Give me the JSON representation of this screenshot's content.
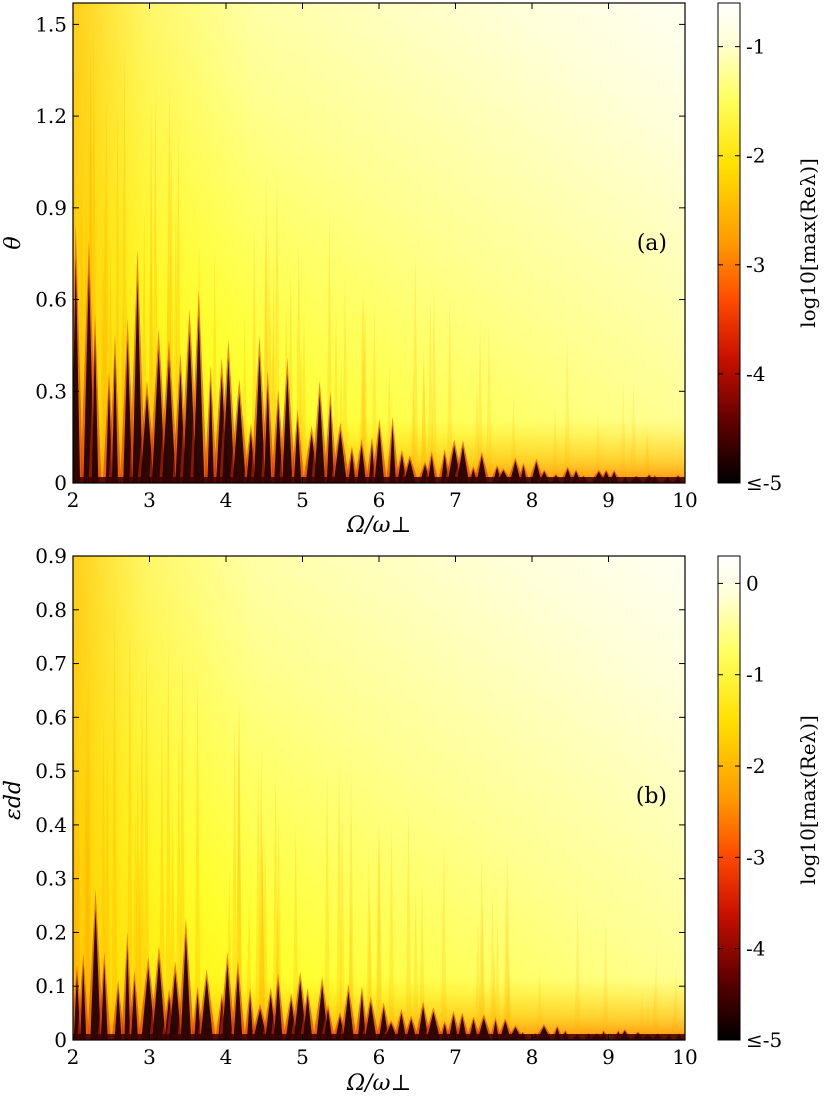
{
  "chart_data": [
    {
      "type": "heatmap",
      "panel_label": "(a)",
      "xlabel": "Ω/ω⊥",
      "ylabel": "θ",
      "xlim": [
        2,
        10
      ],
      "ylim": [
        0,
        1.57
      ],
      "x_ticks": [
        "2",
        "3",
        "4",
        "5",
        "6",
        "7",
        "8",
        "9",
        "10"
      ],
      "y_ticks": [
        "0",
        "0.3",
        "0.6",
        "0.9",
        "1.2",
        "1.5"
      ],
      "colorbar": {
        "label": "log10[max(Reλ)]",
        "range": [
          -5,
          -0.6
        ],
        "ticks": [
          "≤-5",
          "-4",
          "-3",
          "-2",
          "-1"
        ]
      }
    },
    {
      "type": "heatmap",
      "panel_label": "(b)",
      "xlabel": "Ω/ω⊥",
      "ylabel": "εdd",
      "xlim": [
        2,
        10
      ],
      "ylim": [
        0,
        0.9
      ],
      "x_ticks": [
        "2",
        "3",
        "4",
        "5",
        "6",
        "7",
        "8",
        "9",
        "10"
      ],
      "y_ticks": [
        "0",
        "0.1",
        "0.2",
        "0.3",
        "0.4",
        "0.5",
        "0.6",
        "0.7",
        "0.8",
        "0.9"
      ],
      "colorbar": {
        "label": "log10[max(Reλ)]",
        "range": [
          -5,
          0.3
        ],
        "ticks": [
          "≤-5",
          "-4",
          "-3",
          "-2",
          "-1",
          "0"
        ]
      }
    }
  ],
  "colors": {
    "colormap": [
      "#000000",
      "#5a0000",
      "#c81000",
      "#ff4a00",
      "#ff9a00",
      "#ffe000",
      "#ffff60",
      "#ffffd8",
      "#ffffff"
    ]
  }
}
